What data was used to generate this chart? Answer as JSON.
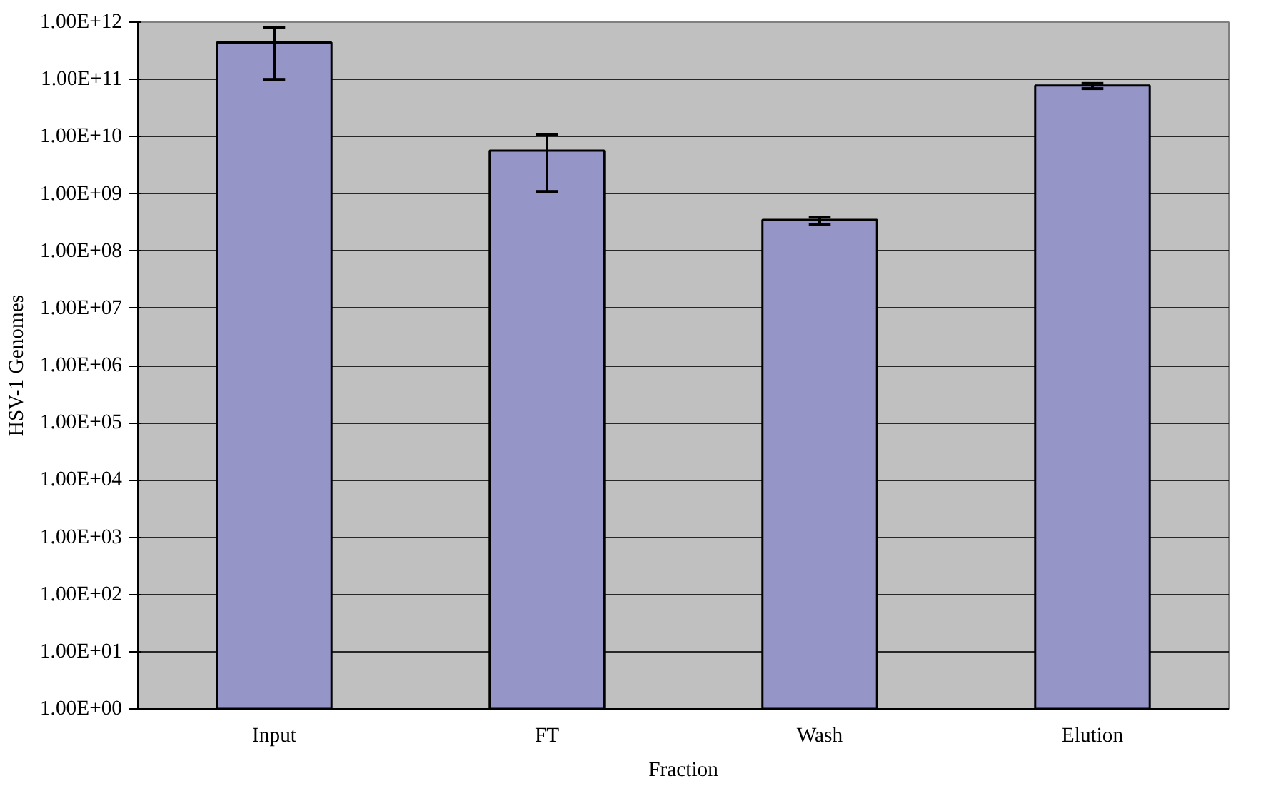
{
  "chart_data": {
    "type": "bar",
    "xlabel": "Fraction",
    "ylabel": "HSV-1 Genomes",
    "categories": [
      "Input",
      "FT",
      "Wash",
      "Elution"
    ],
    "values": [
      440000000000.0,
      5700000000.0,
      350000000.0,
      78000000000.0
    ],
    "errors": [
      [
        100000000000.0,
        800000000000.0
      ],
      [
        1100000000.0,
        11000000000.0
      ],
      [
        290000000.0,
        390000000.0
      ],
      [
        69000000000.0,
        85000000000.0
      ]
    ],
    "color": "#9595c8",
    "log": true,
    "ylim": [
      1,
      1000000000000.0
    ],
    "yticks": [
      {
        "value": 1,
        "label": "1.00E+00"
      },
      {
        "value": 10.0,
        "label": "1.00E+01"
      },
      {
        "value": 100.0,
        "label": "1.00E+02"
      },
      {
        "value": 1000.0,
        "label": "1.00E+03"
      },
      {
        "value": 10000.0,
        "label": "1.00E+04"
      },
      {
        "value": 100000.0,
        "label": "1.00E+05"
      },
      {
        "value": 1000000.0,
        "label": "1.00E+06"
      },
      {
        "value": 10000000.0,
        "label": "1.00E+07"
      },
      {
        "value": 100000000.0,
        "label": "1.00E+08"
      },
      {
        "value": 1000000000.0,
        "label": "1.00E+09"
      },
      {
        "value": 10000000000.0,
        "label": "1.00E+10"
      },
      {
        "value": 100000000000.0,
        "label": "1.00E+11"
      },
      {
        "value": 1000000000000.0,
        "label": "1.00E+12"
      }
    ],
    "grid": "y"
  }
}
